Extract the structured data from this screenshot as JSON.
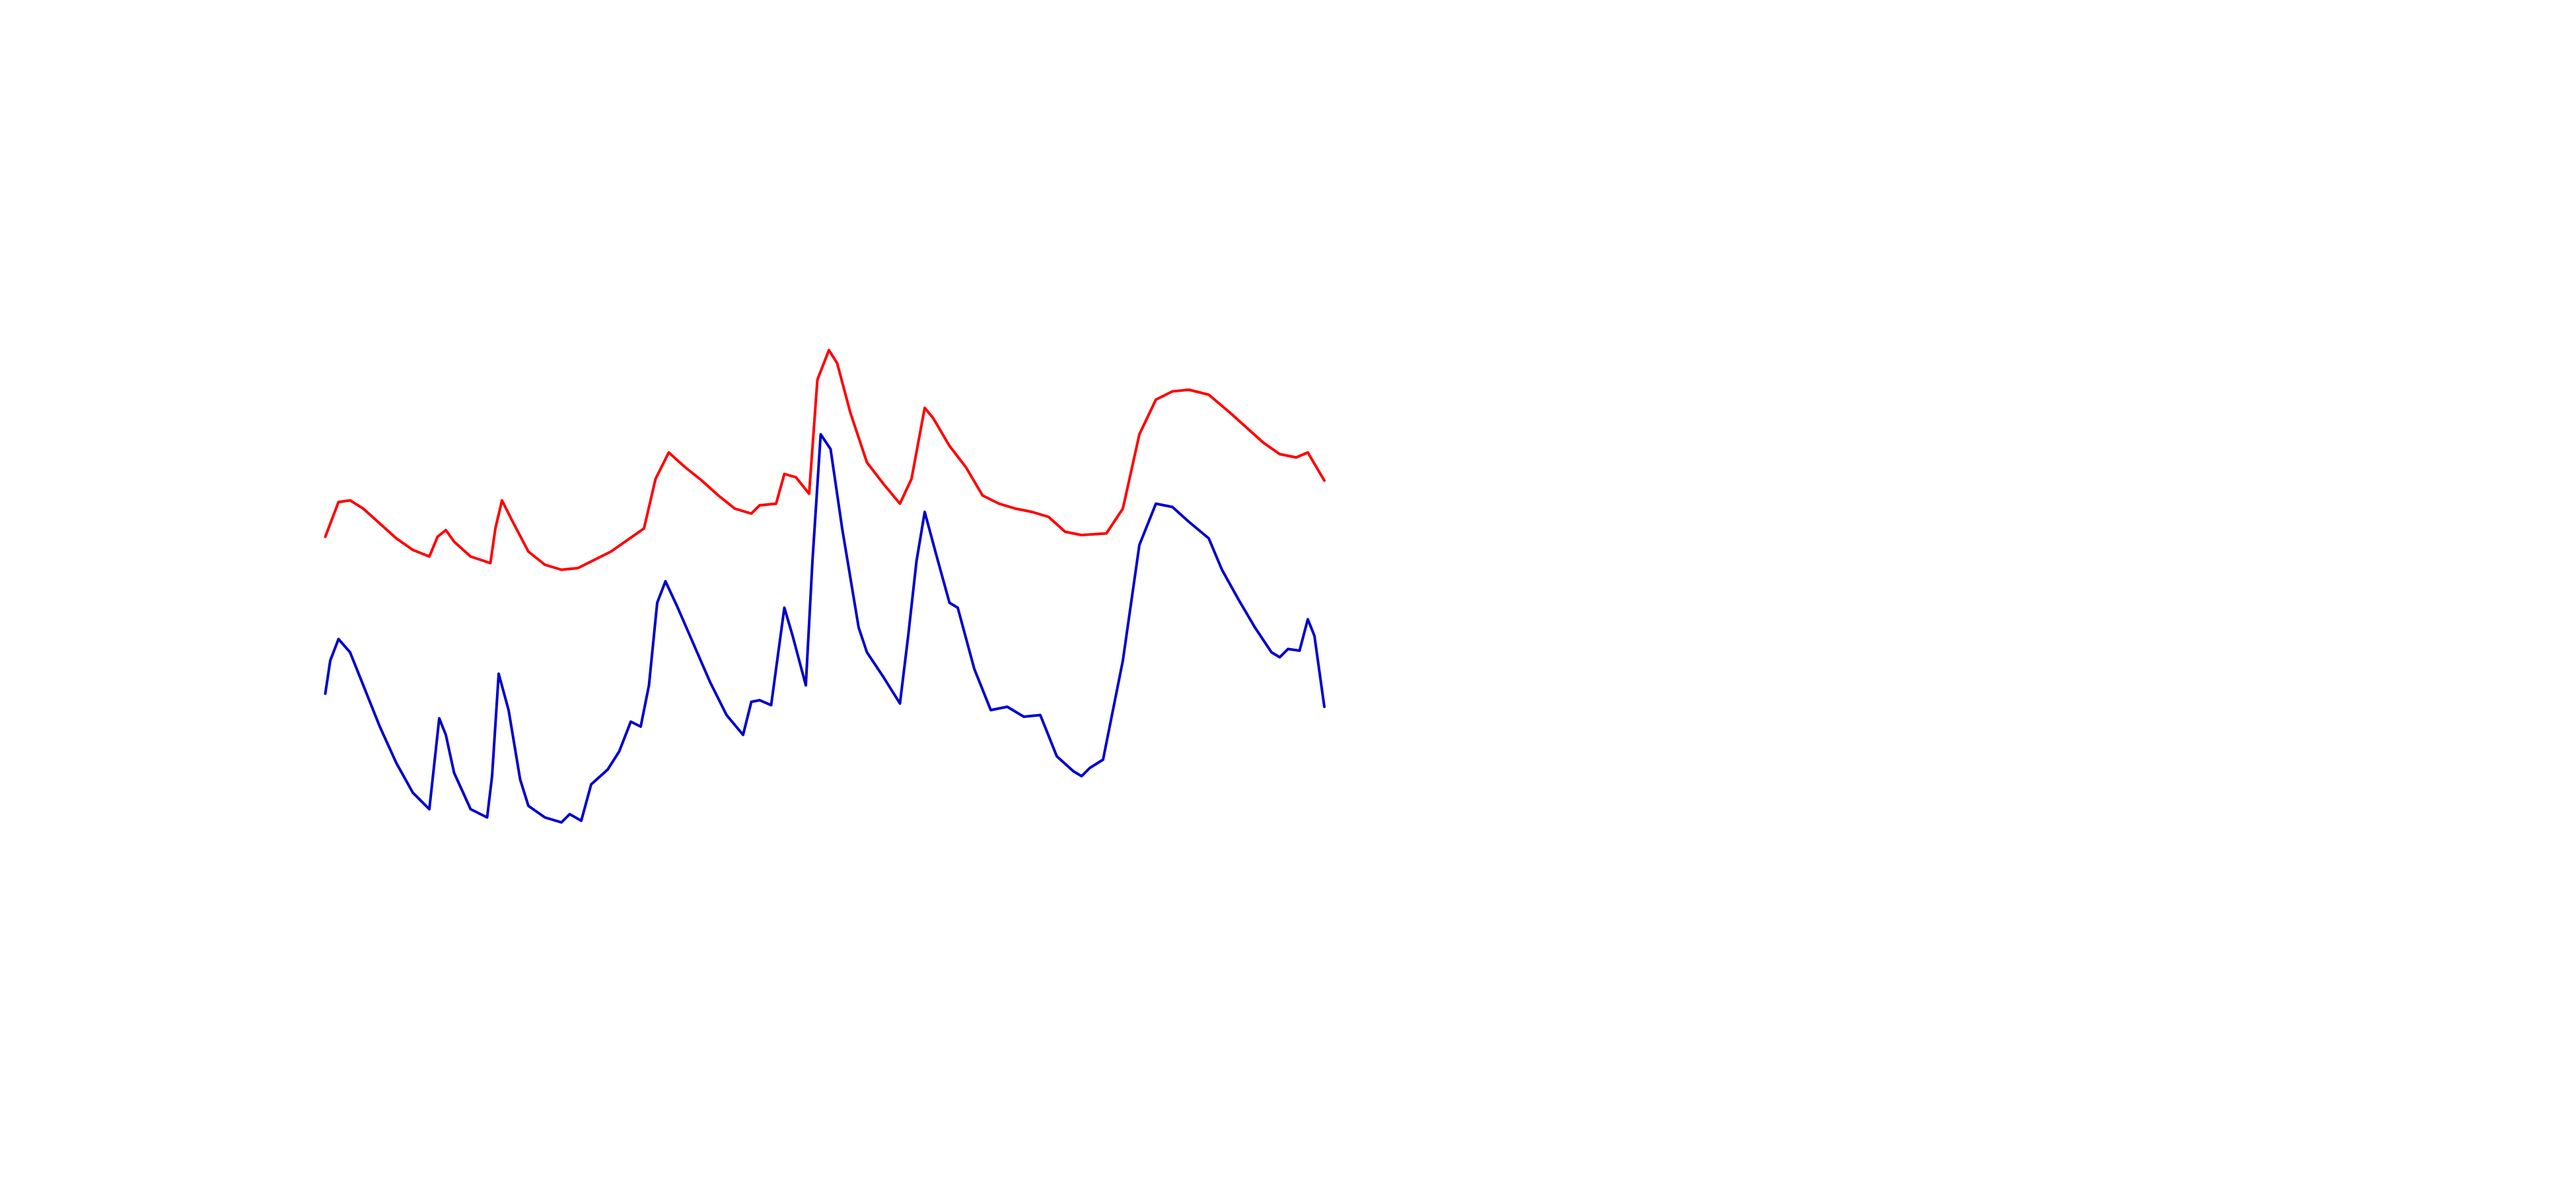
{
  "chart_data": {
    "type": "line",
    "xlim": [
      0,
      1560
    ],
    "ylim": [
      720,
      0
    ],
    "series": [
      {
        "color": "#ff0000",
        "x": [
          197,
          205,
          212,
          220,
          230,
          240,
          250,
          260,
          265,
          270,
          275,
          285,
          297,
          300,
          304,
          310,
          320,
          330,
          340,
          350,
          360,
          370,
          380,
          390,
          397,
          405,
          415,
          425,
          435,
          445,
          455,
          460,
          470,
          475,
          482,
          490,
          495,
          502,
          507,
          515,
          525,
          535,
          545,
          552,
          560,
          565,
          575,
          585,
          595,
          605,
          615,
          625,
          635,
          645,
          655,
          670,
          680,
          690,
          700,
          710,
          720,
          732,
          745,
          755,
          765,
          775,
          785,
          792,
          802
        ],
        "values": [
          325,
          304,
          303,
          308,
          317,
          326,
          333,
          337,
          325,
          321,
          328,
          337,
          341,
          320,
          303,
          315,
          334,
          342,
          345,
          344,
          339,
          334,
          327,
          320,
          290,
          274,
          283,
          291,
          300,
          308,
          311,
          306,
          305,
          287,
          289,
          299,
          230,
          212,
          220,
          250,
          280,
          293,
          305,
          290,
          247,
          253,
          270,
          283,
          300,
          305,
          308,
          310,
          313,
          322,
          324,
          323,
          308,
          263,
          242,
          237,
          236,
          239,
          250,
          259,
          268,
          275,
          277,
          274,
          291
        ]
      },
      {
        "color": "#0000cc",
        "x": [
          197,
          200,
          205,
          212,
          220,
          230,
          240,
          250,
          260,
          266,
          270,
          275,
          285,
          295,
          298,
          302,
          308,
          315,
          320,
          330,
          340,
          345,
          352,
          358,
          368,
          375,
          382,
          388,
          393,
          398,
          403,
          410,
          420,
          430,
          440,
          450,
          455,
          460,
          467,
          475,
          480,
          488,
          492,
          497,
          503,
          510,
          520,
          525,
          535,
          545,
          550,
          555,
          560,
          567,
          575,
          580,
          590,
          600,
          610,
          620,
          630,
          640,
          650,
          655,
          660,
          668,
          673,
          680,
          690,
          700,
          710,
          720,
          732,
          740,
          750,
          760,
          770,
          775,
          780,
          787,
          792,
          796,
          802
        ],
        "values": [
          420,
          400,
          387,
          395,
          415,
          440,
          462,
          480,
          490,
          435,
          445,
          468,
          490,
          495,
          470,
          408,
          430,
          472,
          488,
          495,
          498,
          493,
          497,
          475,
          466,
          455,
          437,
          440,
          415,
          365,
          352,
          367,
          390,
          413,
          433,
          445,
          425,
          424,
          427,
          368,
          385,
          415,
          340,
          263,
          272,
          320,
          380,
          395,
          410,
          426,
          385,
          340,
          310,
          336,
          365,
          368,
          405,
          430,
          428,
          434,
          433,
          458,
          467,
          470,
          465,
          460,
          435,
          400,
          330,
          305,
          307,
          316,
          326,
          345,
          363,
          380,
          395,
          398,
          393,
          394,
          375,
          385,
          428
        ]
      }
    ]
  }
}
